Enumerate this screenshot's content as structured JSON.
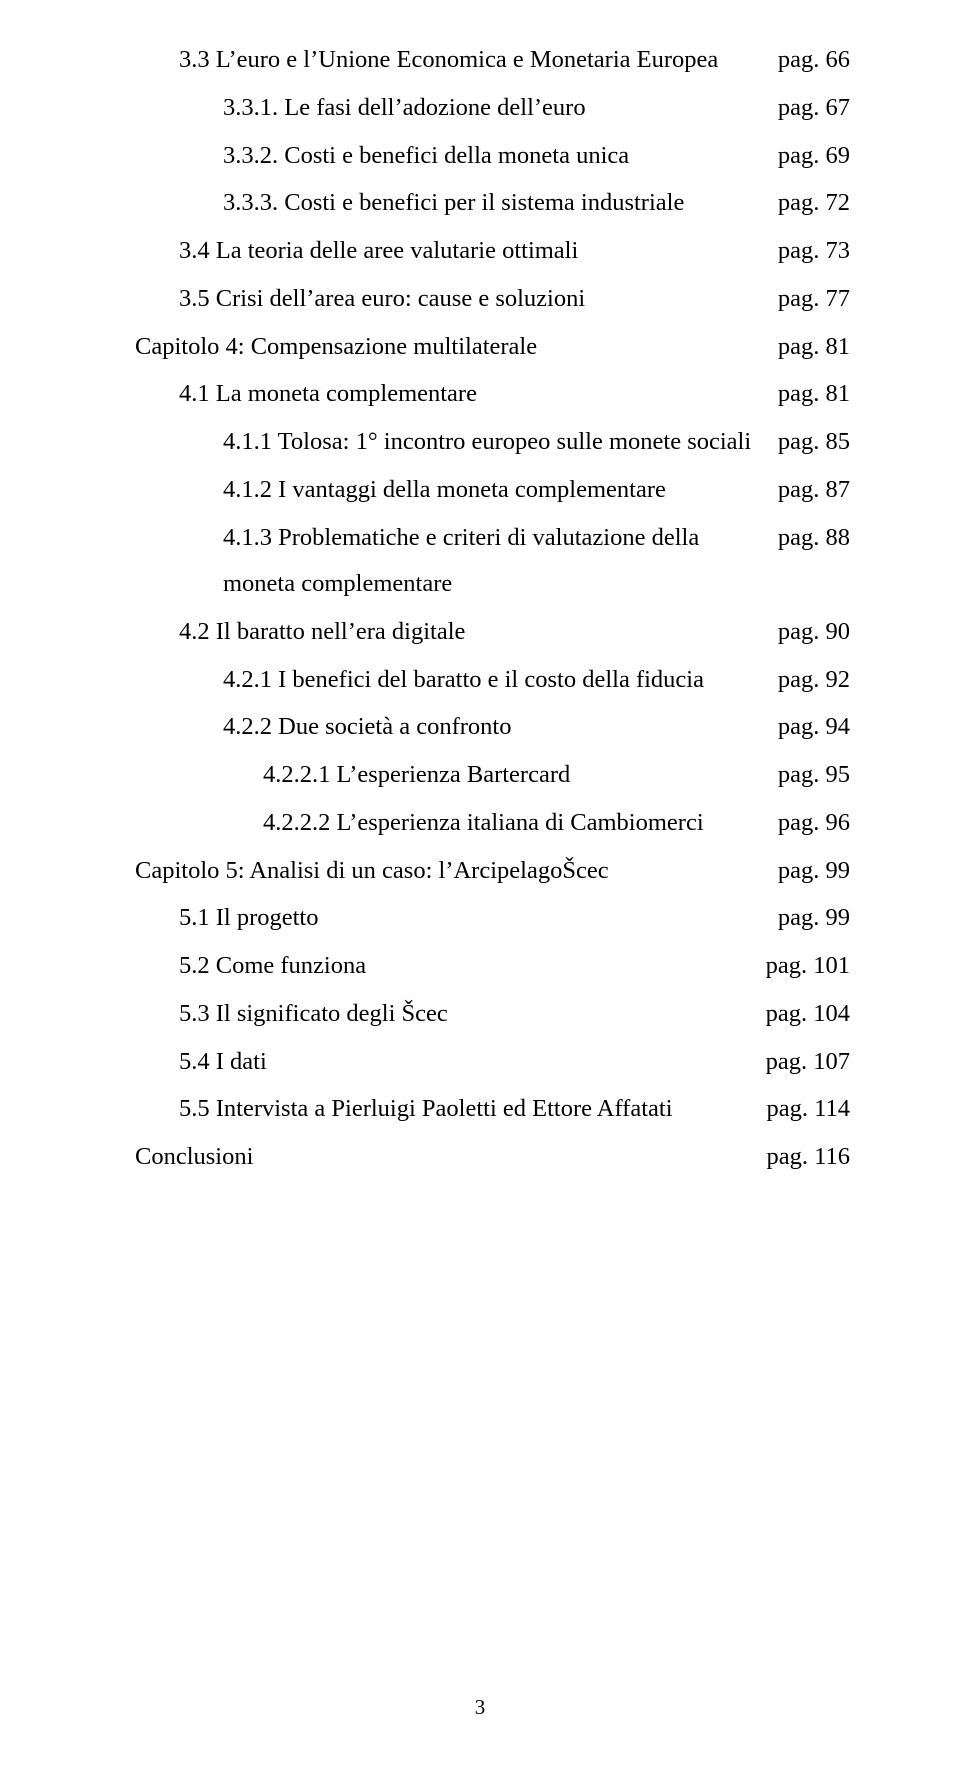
{
  "typography": {
    "font_family": "Times New Roman",
    "body_fontsize_pt": 18,
    "footer_fontsize_pt": 15,
    "text_color": "#000000",
    "background_color": "#ffffff",
    "line_height": 1.95
  },
  "page_number": "3",
  "toc": {
    "rows": [
      {
        "indent": 1,
        "label": "3.3 L’euro e l’Unione Economica e Monetaria Europea",
        "page": "pag. 66"
      },
      {
        "indent": 2,
        "label": "3.3.1. Le fasi dell’adozione dell’euro",
        "page": "pag. 67"
      },
      {
        "indent": 2,
        "label": "3.3.2. Costi e benefici della moneta unica",
        "page": "pag. 69"
      },
      {
        "indent": 2,
        "label": "3.3.3. Costi e benefici per il sistema industriale",
        "page": "pag. 72"
      },
      {
        "indent": 1,
        "label": "3.4 La teoria delle aree valutarie ottimali",
        "page": "pag. 73"
      },
      {
        "indent": 1,
        "label": "3.5 Crisi dell’area euro: cause e soluzioni",
        "page": "pag. 77"
      },
      {
        "indent": 0,
        "label": "Capitolo 4: Compensazione multilaterale",
        "page": "pag. 81"
      },
      {
        "indent": 1,
        "label": "4.1 La moneta complementare",
        "page": "pag. 81"
      },
      {
        "indent": 2,
        "label": "4.1.1 Tolosa: 1° incontro europeo sulle monete sociali",
        "page": "pag. 85"
      },
      {
        "indent": 2,
        "label": "4.1.2 I vantaggi della moneta complementare",
        "page": "pag. 87"
      },
      {
        "indent": 2,
        "label": "4.1.3 Problematiche e criteri di valutazione della moneta complementare",
        "page": "pag. 88"
      },
      {
        "indent": 1,
        "label": "4.2 Il baratto nell’era digitale",
        "page": "pag. 90"
      },
      {
        "indent": 2,
        "label": "4.2.1 I benefici del baratto e il costo della fiducia",
        "page": "pag. 92"
      },
      {
        "indent": 2,
        "label": "4.2.2 Due società a confronto",
        "page": "pag. 94"
      },
      {
        "indent": 3,
        "label": "4.2.2.1 L’esperienza Bartercard",
        "page": "pag. 95"
      },
      {
        "indent": 3,
        "label": "4.2.2.2 L’esperienza italiana di Cambiomerci",
        "page": "pag. 96"
      },
      {
        "indent": 0,
        "label": "Capitolo 5: Analisi di un caso: l’ArcipelagoŠcec",
        "page": "pag. 99"
      },
      {
        "indent": 1,
        "label": "5.1 Il progetto",
        "page": "pag. 99"
      },
      {
        "indent": 1,
        "label": "5.2 Come funziona",
        "page": "pag. 101"
      },
      {
        "indent": 1,
        "label": "5.3 Il significato degli Šcec",
        "page": "pag. 104"
      },
      {
        "indent": 1,
        "label": "5.4 I dati",
        "page": "pag. 107"
      },
      {
        "indent": 1,
        "label": "5.5 Intervista a Pierluigi Paoletti ed Ettore Affatati",
        "page": "pag. 114"
      },
      {
        "indent": 0,
        "label": "Conclusioni",
        "page": "pag. 116"
      }
    ]
  }
}
